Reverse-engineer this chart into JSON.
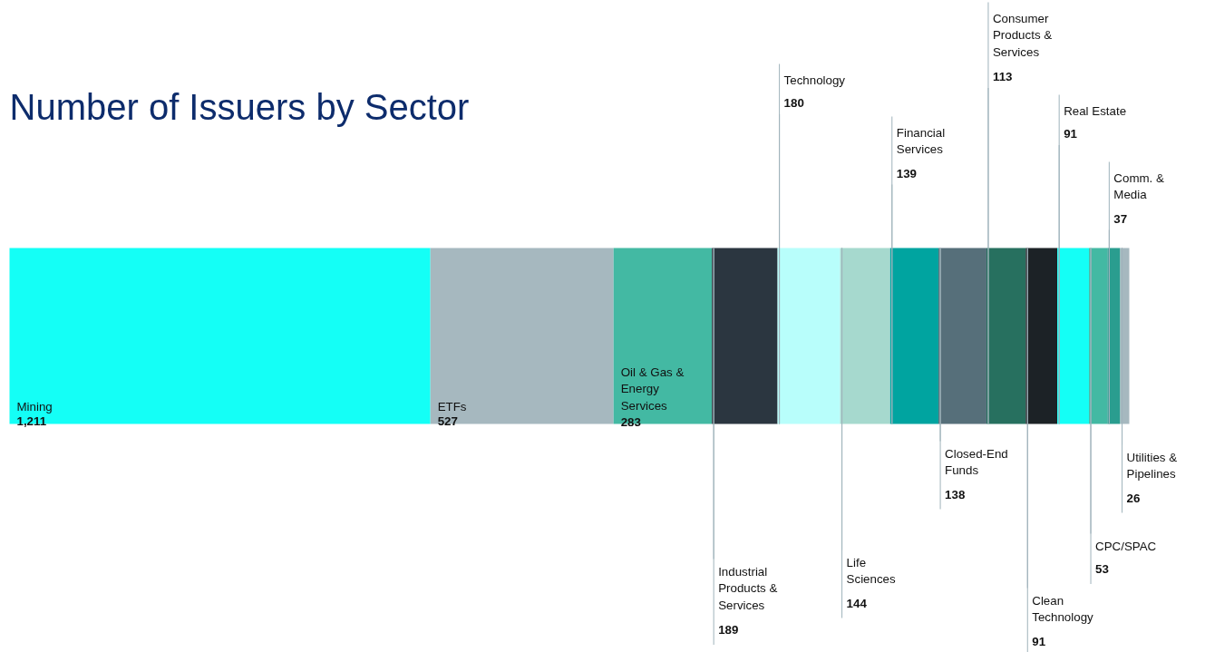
{
  "chart_data": {
    "type": "bar",
    "title": "Number of Issuers by Sector",
    "orientation": "horizontal",
    "stacked": true,
    "categories": [
      null
    ],
    "series": [
      {
        "name": "Mining",
        "color": "#14fff6",
        "values": [
          1211
        ],
        "value_labels": [
          "1,211"
        ]
      },
      {
        "name": "ETFs",
        "color": "#a6b8bf",
        "values": [
          527
        ],
        "value_labels": [
          "527"
        ]
      },
      {
        "name": "Oil & Gas & Energy Services",
        "color": "#43b9a3",
        "values": [
          283
        ],
        "value_labels": [
          "283"
        ]
      },
      {
        "name": "Industrial Products & Services",
        "color": "#2b3640",
        "values": [
          189
        ],
        "value_labels": [
          "189"
        ]
      },
      {
        "name": "Technology",
        "color": "#b8fefb",
        "values": [
          180
        ],
        "value_labels": [
          "180"
        ]
      },
      {
        "name": "Life Sciences",
        "color": "#a6d9ce",
        "values": [
          144
        ],
        "value_labels": [
          "144"
        ]
      },
      {
        "name": "Financial Services",
        "color": "#00a4a0",
        "values": [
          139
        ],
        "value_labels": [
          "139"
        ]
      },
      {
        "name": "Closed-End Funds",
        "color": "#566f7a",
        "values": [
          138
        ],
        "value_labels": [
          "138"
        ]
      },
      {
        "name": "Consumer Products & Services",
        "color": "#27705f",
        "values": [
          113
        ],
        "value_labels": [
          "113"
        ]
      },
      {
        "name": "Clean Technology",
        "color": "#1c2226",
        "values": [
          91
        ],
        "value_labels": [
          "91"
        ]
      },
      {
        "name": "Real Estate",
        "color": "#14fff6",
        "values": [
          91
        ],
        "value_labels": [
          "91"
        ]
      },
      {
        "name": "CPC/SPAC",
        "color": "#43b9a3",
        "values": [
          53
        ],
        "value_labels": [
          "53"
        ]
      },
      {
        "name": "Comm. & Media",
        "color": "#2a9d8f",
        "values": [
          37
        ],
        "value_labels": [
          "37"
        ]
      },
      {
        "name": "Utilities & Pipelines",
        "color": "#a6b8bf",
        "values": [
          26
        ],
        "value_labels": [
          "26"
        ]
      }
    ]
  }
}
